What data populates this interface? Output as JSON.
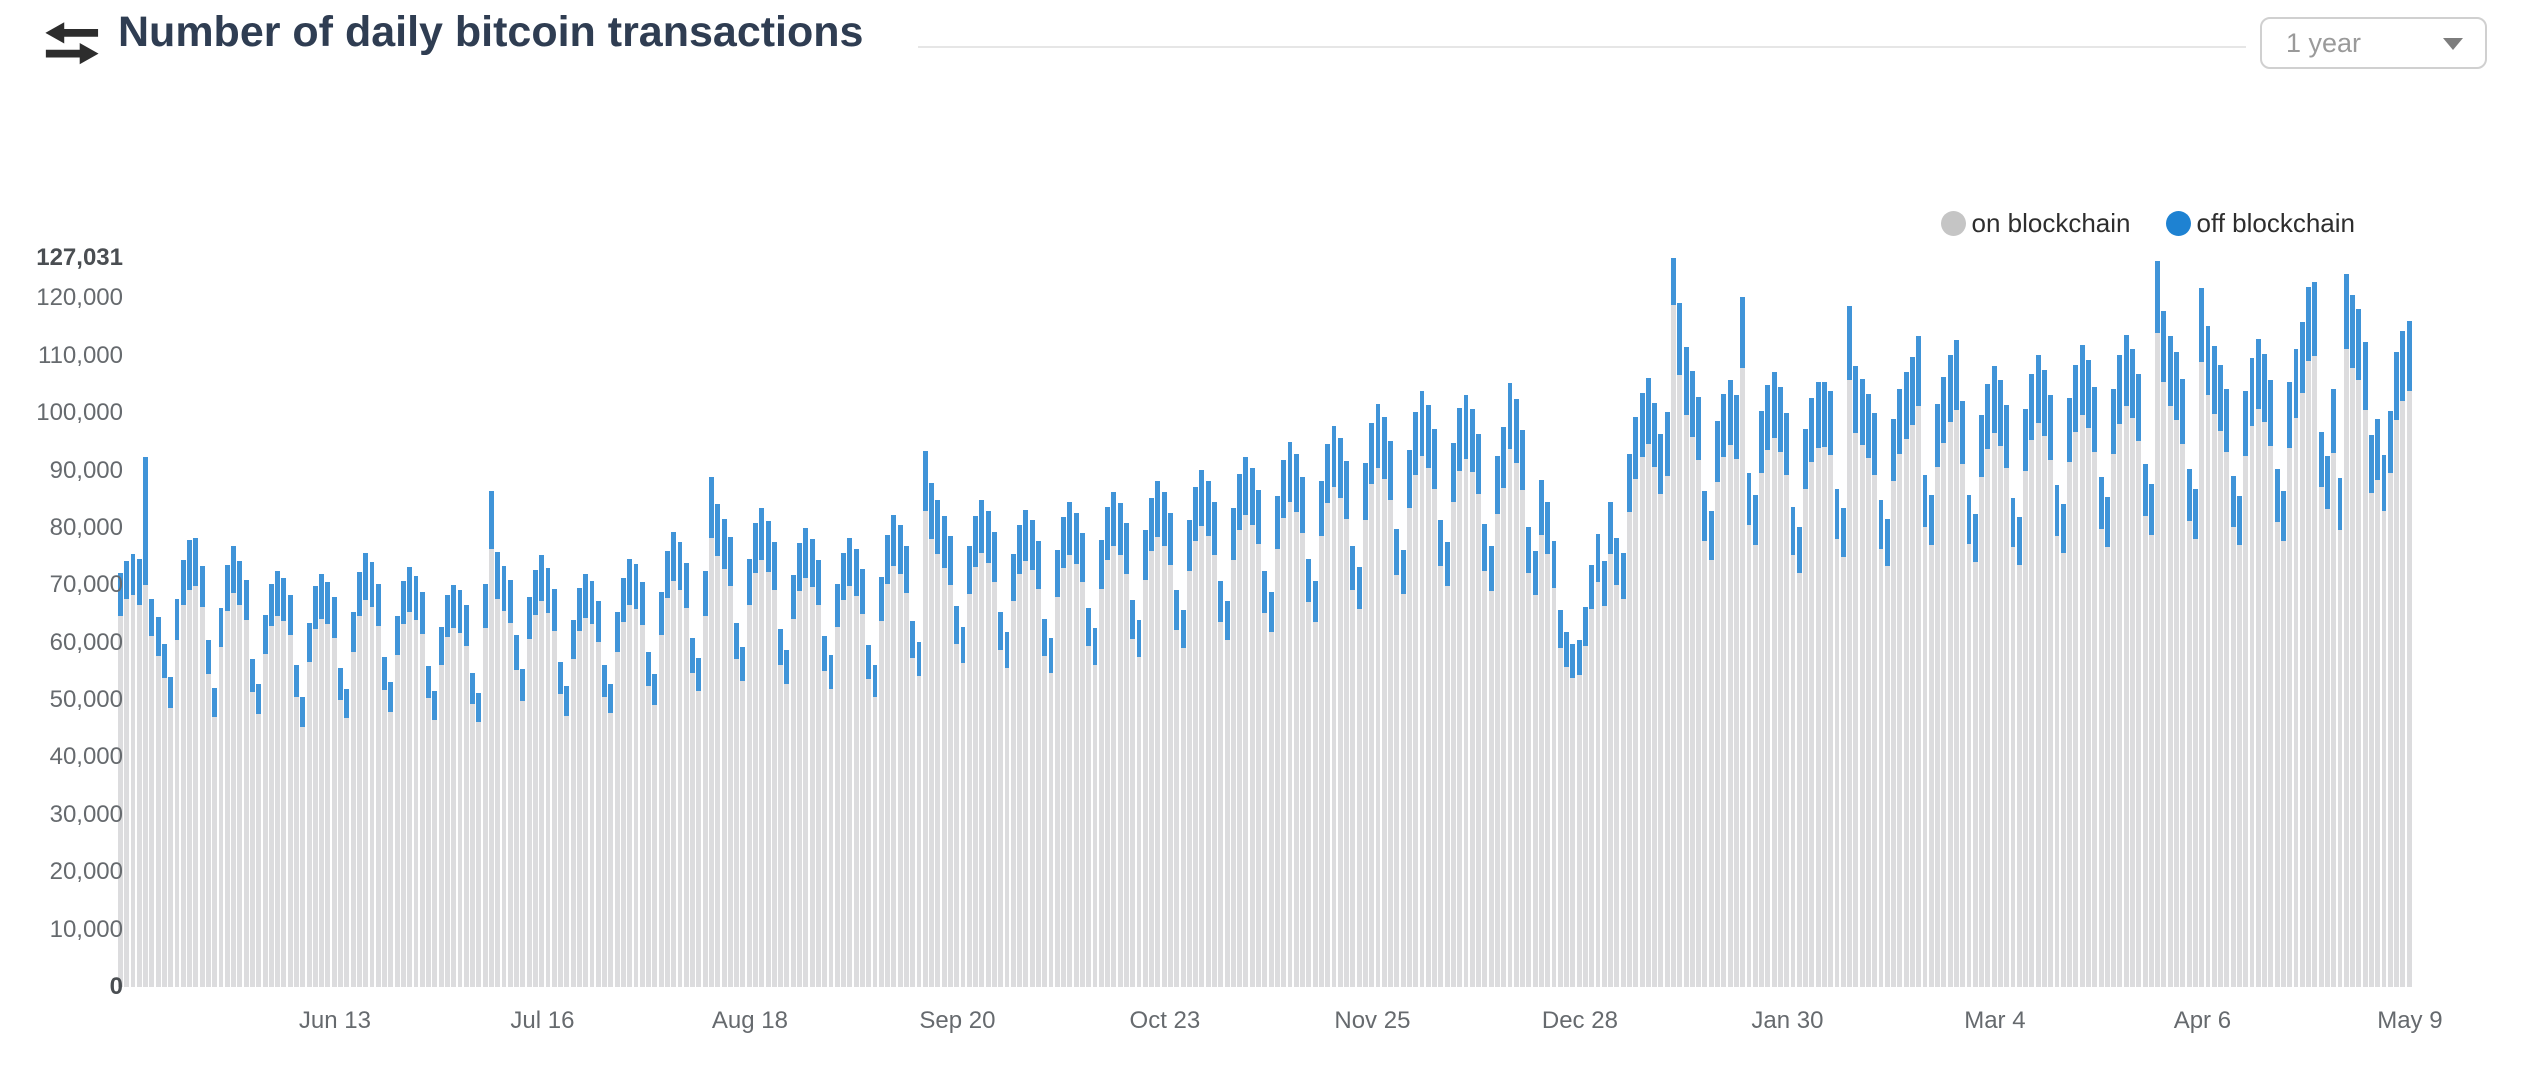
{
  "header": {
    "title": "Number of daily bitcoin transactions",
    "icon": "swap-arrows-icon",
    "range_selector": {
      "value": "1 year",
      "icon": "caret-down-icon"
    }
  },
  "legend": {
    "items": [
      {
        "label": "on blockchain",
        "color": "#c5c5c5"
      },
      {
        "label": "off blockchain",
        "color": "#1e82d2"
      }
    ]
  },
  "chart_data": {
    "type": "bar",
    "stacked": true,
    "title": "Number of daily bitcoin transactions",
    "xlabel": "",
    "ylabel": "",
    "ylim": [
      0,
      127031
    ],
    "grid": false,
    "legend_position": "top-right",
    "bar_colors": {
      "on": "#dcdcde",
      "off": "#4094d8"
    },
    "y_ticks": [
      {
        "label": "127,031",
        "value": 127031,
        "bold": true
      },
      {
        "label": "120,000",
        "value": 120000,
        "bold": false
      },
      {
        "label": "110,000",
        "value": 110000,
        "bold": false
      },
      {
        "label": "100,000",
        "value": 100000,
        "bold": false
      },
      {
        "label": "90,000",
        "value": 90000,
        "bold": false
      },
      {
        "label": "80,000",
        "value": 80000,
        "bold": false
      },
      {
        "label": "70,000",
        "value": 70000,
        "bold": false
      },
      {
        "label": "60,000",
        "value": 60000,
        "bold": false
      },
      {
        "label": "50,000",
        "value": 50000,
        "bold": false
      },
      {
        "label": "40,000",
        "value": 40000,
        "bold": false
      },
      {
        "label": "30,000",
        "value": 30000,
        "bold": false
      },
      {
        "label": "20,000",
        "value": 20000,
        "bold": false
      },
      {
        "label": "10,000",
        "value": 10000,
        "bold": false
      },
      {
        "label": "0",
        "value": 0,
        "bold": true
      }
    ],
    "x_ticks": [
      {
        "label": "Jun 13",
        "day": 34
      },
      {
        "label": "Jul 16",
        "day": 67
      },
      {
        "label": "Aug 18",
        "day": 100
      },
      {
        "label": "Sep 20",
        "day": 133
      },
      {
        "label": "Oct 23",
        "day": 166
      },
      {
        "label": "Nov 25",
        "day": 199
      },
      {
        "label": "Dec 28",
        "day": 232
      },
      {
        "label": "Jan 30",
        "day": 265
      },
      {
        "label": "Mar 4",
        "day": 298
      },
      {
        "label": "Apr 6",
        "day": 331
      },
      {
        "label": "May 9",
        "day": 364
      }
    ],
    "series_names": [
      "on blockchain",
      "off blockchain"
    ],
    "days": [
      [
        64700,
        7500
      ],
      [
        67600,
        6700
      ],
      [
        68300,
        7200
      ],
      [
        66500,
        8100
      ],
      [
        70000,
        22300
      ],
      [
        61200,
        6500
      ],
      [
        57600,
        6800
      ],
      [
        53900,
        5900
      ],
      [
        48600,
        5400
      ],
      [
        60400,
        7300
      ],
      [
        66600,
        7900
      ],
      [
        69200,
        8700
      ],
      [
        69800,
        8500
      ],
      [
        66300,
        7100
      ],
      [
        54600,
        5900
      ],
      [
        47000,
        5100
      ],
      [
        59300,
        6700
      ],
      [
        65600,
        7900
      ],
      [
        68600,
        8200
      ],
      [
        66500,
        7700
      ],
      [
        63900,
        7100
      ],
      [
        51500,
        5700
      ],
      [
        47500,
        5300
      ],
      [
        58100,
        6700
      ],
      [
        62900,
        7300
      ],
      [
        64700,
        7800
      ],
      [
        63800,
        7500
      ],
      [
        61300,
        7100
      ],
      [
        50500,
        5600
      ],
      [
        45400,
        5100
      ],
      [
        56700,
        6700
      ],
      [
        62400,
        7400
      ],
      [
        64200,
        7700
      ],
      [
        63200,
        7400
      ],
      [
        60900,
        7100
      ],
      [
        50100,
        5500
      ],
      [
        46800,
        5100
      ],
      [
        58400,
        6900
      ],
      [
        64600,
        7800
      ],
      [
        67400,
        8200
      ],
      [
        66200,
        7900
      ],
      [
        62900,
        7400
      ],
      [
        51800,
        5700
      ],
      [
        47900,
        5300
      ],
      [
        57800,
        6900
      ],
      [
        63200,
        7600
      ],
      [
        65300,
        7900
      ],
      [
        63900,
        7700
      ],
      [
        61500,
        7400
      ],
      [
        50300,
        5600
      ],
      [
        46500,
        5100
      ],
      [
        56100,
        6700
      ],
      [
        61000,
        7300
      ],
      [
        62600,
        7500
      ],
      [
        61700,
        7500
      ],
      [
        59400,
        7100
      ],
      [
        49300,
        5500
      ],
      [
        46100,
        5100
      ],
      [
        62600,
        7600
      ],
      [
        76300,
        10200
      ],
      [
        67700,
        8100
      ],
      [
        65500,
        7900
      ],
      [
        63500,
        7400
      ],
      [
        55200,
        6100
      ],
      [
        49900,
        5500
      ],
      [
        60700,
        7200
      ],
      [
        64800,
        7800
      ],
      [
        67200,
        8100
      ],
      [
        65200,
        7900
      ],
      [
        62000,
        7400
      ],
      [
        51000,
        5700
      ],
      [
        47200,
        5200
      ],
      [
        57100,
        6800
      ],
      [
        62100,
        7400
      ],
      [
        64300,
        7700
      ],
      [
        63200,
        7600
      ],
      [
        60100,
        7200
      ],
      [
        50600,
        5600
      ],
      [
        47700,
        5200
      ],
      [
        58400,
        7000
      ],
      [
        63600,
        7600
      ],
      [
        66600,
        8000
      ],
      [
        65900,
        7900
      ],
      [
        63100,
        7500
      ],
      [
        52500,
        5800
      ],
      [
        49200,
        5400
      ],
      [
        61400,
        7400
      ],
      [
        67800,
        8100
      ],
      [
        70800,
        8500
      ],
      [
        69200,
        8300
      ],
      [
        66000,
        7900
      ],
      [
        54700,
        6100
      ],
      [
        51600,
        5700
      ],
      [
        64700,
        7800
      ],
      [
        78200,
        10600
      ],
      [
        75100,
        9100
      ],
      [
        72800,
        8800
      ],
      [
        69900,
        8500
      ],
      [
        57100,
        6400
      ],
      [
        53300,
        5900
      ],
      [
        66600,
        8000
      ],
      [
        72100,
        8700
      ],
      [
        74400,
        9000
      ],
      [
        72400,
        8800
      ],
      [
        69200,
        8400
      ],
      [
        56100,
        6300
      ],
      [
        52800,
        5900
      ],
      [
        64100,
        7700
      ],
      [
        69100,
        8300
      ],
      [
        71300,
        8600
      ],
      [
        69700,
        8400
      ],
      [
        66500,
        8000
      ],
      [
        55100,
        6100
      ],
      [
        52000,
        5800
      ],
      [
        62700,
        7600
      ],
      [
        67500,
        8100
      ],
      [
        69800,
        8400
      ],
      [
        68200,
        8200
      ],
      [
        65000,
        7800
      ],
      [
        53600,
        6000
      ],
      [
        50500,
        5600
      ],
      [
        63700,
        7700
      ],
      [
        70300,
        8500
      ],
      [
        73400,
        8900
      ],
      [
        71900,
        8700
      ],
      [
        68600,
        8300
      ],
      [
        57400,
        6400
      ],
      [
        54200,
        6000
      ],
      [
        82900,
        10600
      ],
      [
        78000,
        9800
      ],
      [
        75500,
        9400
      ],
      [
        73000,
        9100
      ],
      [
        70100,
        8500
      ],
      [
        59700,
        6700
      ],
      [
        56400,
        6300
      ],
      [
        68500,
        8300
      ],
      [
        73200,
        8900
      ],
      [
        75600,
        9200
      ],
      [
        73900,
        9000
      ],
      [
        70600,
        8600
      ],
      [
        58700,
        6600
      ],
      [
        55600,
        6200
      ],
      [
        67200,
        8200
      ],
      [
        71900,
        8700
      ],
      [
        74200,
        9000
      ],
      [
        72600,
        8800
      ],
      [
        69400,
        8400
      ],
      [
        57700,
        6500
      ],
      [
        54800,
        6100
      ],
      [
        67900,
        8300
      ],
      [
        73000,
        8900
      ],
      [
        75300,
        9200
      ],
      [
        73700,
        9000
      ],
      [
        70500,
        8600
      ],
      [
        59400,
        6700
      ],
      [
        56200,
        6300
      ],
      [
        69400,
        8500
      ],
      [
        74500,
        9100
      ],
      [
        76800,
        9400
      ],
      [
        75200,
        9200
      ],
      [
        72000,
        8800
      ],
      [
        60600,
        6800
      ],
      [
        57500,
        6400
      ],
      [
        70900,
        8700
      ],
      [
        76000,
        9300
      ],
      [
        78500,
        9600
      ],
      [
        76900,
        9400
      ],
      [
        73600,
        9000
      ],
      [
        62200,
        7000
      ],
      [
        59100,
        6600
      ],
      [
        72500,
        8900
      ],
      [
        77700,
        9500
      ],
      [
        80300,
        9800
      ],
      [
        78600,
        9600
      ],
      [
        75300,
        9200
      ],
      [
        63600,
        7200
      ],
      [
        60400,
        6800
      ],
      [
        74400,
        9100
      ],
      [
        79700,
        9700
      ],
      [
        82200,
        10100
      ],
      [
        80500,
        9900
      ],
      [
        77200,
        9400
      ],
      [
        65200,
        7300
      ],
      [
        61900,
        7000
      ],
      [
        76300,
        9300
      ],
      [
        81800,
        10000
      ],
      [
        84500,
        10400
      ],
      [
        82700,
        10100
      ],
      [
        79200,
        9700
      ],
      [
        67100,
        7500
      ],
      [
        63600,
        7200
      ],
      [
        78600,
        9600
      ],
      [
        84300,
        10300
      ],
      [
        87100,
        10700
      ],
      [
        85300,
        10400
      ],
      [
        81600,
        10000
      ],
      [
        69200,
        7700
      ],
      [
        65800,
        7400
      ],
      [
        81400,
        10000
      ],
      [
        87600,
        10700
      ],
      [
        90500,
        11100
      ],
      [
        88600,
        10800
      ],
      [
        84800,
        10400
      ],
      [
        71800,
        8000
      ],
      [
        68500,
        7600
      ],
      [
        83400,
        10200
      ],
      [
        89300,
        10900
      ],
      [
        92500,
        11300
      ],
      [
        90400,
        11100
      ],
      [
        86700,
        10600
      ],
      [
        73300,
        8100
      ],
      [
        69800,
        7800
      ],
      [
        84500,
        10300
      ],
      [
        89900,
        11000
      ],
      [
        92000,
        11200
      ],
      [
        89800,
        11000
      ],
      [
        85900,
        10500
      ],
      [
        72500,
        8100
      ],
      [
        69100,
        7700
      ],
      [
        82400,
        10100
      ],
      [
        87000,
        10600
      ],
      [
        93800,
        11400
      ],
      [
        91300,
        11100
      ],
      [
        86600,
        10500
      ],
      [
        72200,
        8000
      ],
      [
        68300,
        7600
      ],
      [
        78800,
        9600
      ],
      [
        75400,
        9200
      ],
      [
        69500,
        8300
      ],
      [
        59100,
        6600
      ],
      [
        55700,
        6200
      ],
      [
        53800,
        6000
      ],
      [
        54300,
        6100
      ],
      [
        59400,
        6800
      ],
      [
        65800,
        7700
      ],
      [
        70600,
        8300
      ],
      [
        66400,
        7900
      ],
      [
        75500,
        9100
      ],
      [
        70000,
        8200
      ],
      [
        67600,
        8000
      ],
      [
        82800,
        10000
      ],
      [
        88600,
        10800
      ],
      [
        92300,
        11300
      ],
      [
        94600,
        11600
      ],
      [
        90700,
        11100
      ],
      [
        85900,
        10500
      ],
      [
        89000,
        11200
      ],
      [
        118831,
        8200
      ],
      [
        106600,
        12600
      ],
      [
        99700,
        11900
      ],
      [
        95900,
        11400
      ],
      [
        91900,
        10900
      ],
      [
        77700,
        8700
      ],
      [
        74500,
        8400
      ],
      [
        88000,
        10600
      ],
      [
        92300,
        11100
      ],
      [
        94400,
        11400
      ],
      [
        92000,
        11100
      ],
      [
        107800,
        12500
      ],
      [
        80600,
        9000
      ],
      [
        77100,
        8700
      ],
      [
        89600,
        10800
      ],
      [
        93600,
        11300
      ],
      [
        95600,
        11600
      ],
      [
        93300,
        11300
      ],
      [
        89300,
        10800
      ],
      [
        75300,
        8400
      ],
      [
        72100,
        8100
      ],
      [
        86800,
        10500
      ],
      [
        91500,
        11100
      ],
      [
        94000,
        11400
      ],
      [
        94100,
        11400
      ],
      [
        92700,
        11200
      ],
      [
        78100,
        8700
      ],
      [
        75000,
        8400
      ],
      [
        105800,
        12800
      ],
      [
        96600,
        11600
      ],
      [
        94500,
        11400
      ],
      [
        92200,
        11200
      ],
      [
        89300,
        10800
      ],
      [
        76400,
        8500
      ],
      [
        73400,
        8200
      ],
      [
        88200,
        10700
      ],
      [
        92900,
        11300
      ],
      [
        95500,
        11600
      ],
      [
        97900,
        11900
      ],
      [
        101200,
        12200
      ],
      [
        80200,
        9000
      ],
      [
        77100,
        8600
      ],
      [
        90600,
        11000
      ],
      [
        94800,
        11500
      ],
      [
        98400,
        11800
      ],
      [
        100600,
        12200
      ],
      [
        91100,
        11100
      ],
      [
        77200,
        8600
      ],
      [
        74100,
        8300
      ],
      [
        88800,
        10800
      ],
      [
        93700,
        11400
      ],
      [
        96500,
        11700
      ],
      [
        94300,
        11400
      ],
      [
        90400,
        11000
      ],
      [
        76600,
        8600
      ],
      [
        73600,
        8300
      ],
      [
        89900,
        10900
      ],
      [
        95300,
        11600
      ],
      [
        98300,
        11900
      ],
      [
        96000,
        11600
      ],
      [
        91900,
        11200
      ],
      [
        78600,
        8800
      ],
      [
        75600,
        8500
      ],
      [
        91500,
        11100
      ],
      [
        96700,
        11700
      ],
      [
        99700,
        12100
      ],
      [
        97400,
        11800
      ],
      [
        93300,
        11300
      ],
      [
        79900,
        9000
      ],
      [
        76700,
        8600
      ],
      [
        92900,
        11300
      ],
      [
        98200,
        11900
      ],
      [
        101300,
        12300
      ],
      [
        99200,
        12000
      ],
      [
        95200,
        11600
      ],
      [
        82000,
        9200
      ],
      [
        78800,
        8800
      ],
      [
        113900,
        12600
      ],
      [
        105400,
        12400
      ],
      [
        101300,
        12100
      ],
      [
        98800,
        11800
      ],
      [
        94600,
        11300
      ],
      [
        81200,
        9100
      ],
      [
        78100,
        8700
      ],
      [
        108900,
        12900
      ],
      [
        103100,
        12100
      ],
      [
        99900,
        11800
      ],
      [
        96900,
        11500
      ],
      [
        93200,
        11000
      ],
      [
        80200,
        8900
      ],
      [
        77000,
        8600
      ],
      [
        92600,
        11200
      ],
      [
        97800,
        11800
      ],
      [
        100700,
        12200
      ],
      [
        98400,
        11900
      ],
      [
        94300,
        11400
      ],
      [
        81100,
        9100
      ],
      [
        77800,
        8700
      ],
      [
        94000,
        11400
      ],
      [
        99200,
        12000
      ],
      [
        103500,
        12300
      ],
      [
        109100,
        12800
      ],
      [
        109900,
        12900
      ],
      [
        87100,
        9700
      ],
      [
        83300,
        9300
      ],
      [
        93000,
        11200
      ],
      [
        79600,
        9100
      ],
      [
        111200,
        13100
      ],
      [
        107900,
        12700
      ],
      [
        105700,
        12500
      ],
      [
        100500,
        11900
      ],
      [
        86100,
        10100
      ],
      [
        88400,
        10500
      ],
      [
        83000,
        9800
      ],
      [
        89600,
        10700
      ],
      [
        98800,
        11800
      ],
      [
        102100,
        12200
      ],
      [
        103800,
        12300
      ]
    ]
  }
}
